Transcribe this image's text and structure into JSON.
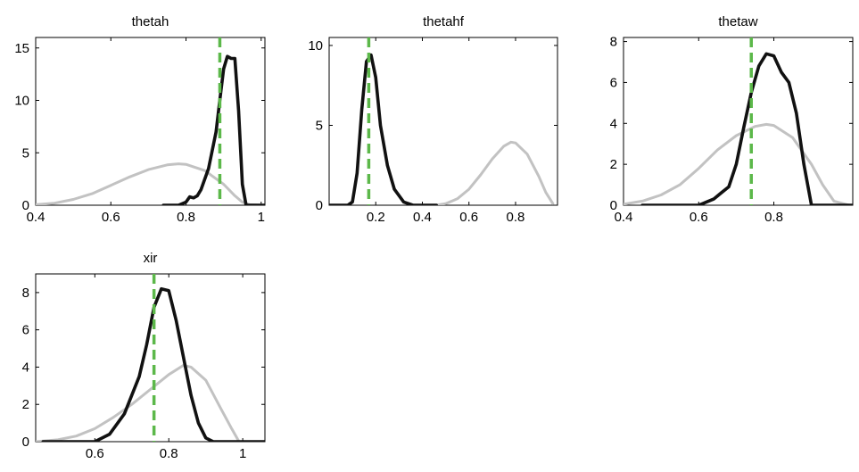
{
  "figure": {
    "background": "#ffffff",
    "prior_color": "#c2c2c2",
    "posterior_color": "#111111",
    "mode_color": "#5cb84a"
  },
  "chart_data": [
    {
      "type": "line",
      "title": "thetah",
      "xlim": [
        0.4,
        1.01
      ],
      "ylim": [
        0,
        16
      ],
      "xticks": [
        0.4,
        0.6,
        0.8,
        1
      ],
      "xtick_labels": [
        "0.4",
        "0.6",
        "0.8",
        "1"
      ],
      "yticks": [
        0,
        5,
        10,
        15
      ],
      "ytick_labels": [
        "0",
        "5",
        "10",
        "15"
      ],
      "mode_line": 0.89,
      "series": [
        {
          "role": "prior",
          "x": [
            0.4,
            0.45,
            0.5,
            0.55,
            0.6,
            0.65,
            0.7,
            0.75,
            0.78,
            0.8,
            0.85,
            0.9,
            0.93,
            0.95,
            0.97,
            1.0
          ],
          "y": [
            0.05,
            0.2,
            0.55,
            1.1,
            1.9,
            2.7,
            3.4,
            3.85,
            3.95,
            3.9,
            3.3,
            2.0,
            0.9,
            0.3,
            0.05,
            0
          ]
        },
        {
          "role": "posterior",
          "x": [
            0.74,
            0.78,
            0.8,
            0.81,
            0.82,
            0.83,
            0.84,
            0.86,
            0.88,
            0.89,
            0.9,
            0.91,
            0.92,
            0.93,
            0.94,
            0.95,
            0.96,
            1.01
          ],
          "y": [
            0,
            0,
            0.3,
            0.8,
            0.7,
            0.9,
            1.5,
            3.5,
            7.0,
            10.0,
            13.0,
            14.2,
            14.0,
            14.0,
            9.0,
            2.0,
            0,
            0
          ]
        }
      ]
    },
    {
      "type": "line",
      "title": "thetahf",
      "xlim": [
        0.0,
        0.98
      ],
      "ylim": [
        0,
        10.5
      ],
      "xticks": [
        0.2,
        0.4,
        0.6,
        0.8
      ],
      "xtick_labels": [
        "0.2",
        "0.4",
        "0.6",
        "0.8"
      ],
      "yticks": [
        0,
        5,
        10
      ],
      "ytick_labels": [
        "0",
        "5",
        "10"
      ],
      "mode_line": 0.17,
      "series": [
        {
          "role": "prior",
          "x": [
            0.46,
            0.5,
            0.55,
            0.6,
            0.65,
            0.7,
            0.75,
            0.78,
            0.8,
            0.85,
            0.9,
            0.93,
            0.96
          ],
          "y": [
            0,
            0.1,
            0.4,
            1.0,
            1.9,
            2.9,
            3.7,
            3.95,
            3.9,
            3.2,
            1.8,
            0.8,
            0.1
          ]
        },
        {
          "role": "posterior",
          "x": [
            0.0,
            0.08,
            0.1,
            0.12,
            0.14,
            0.16,
            0.18,
            0.2,
            0.22,
            0.25,
            0.28,
            0.32,
            0.36,
            0.46
          ],
          "y": [
            0,
            0,
            0.2,
            2.0,
            6.0,
            9.0,
            9.4,
            8.0,
            5.0,
            2.5,
            1.0,
            0.2,
            0,
            0
          ]
        }
      ]
    },
    {
      "type": "line",
      "title": "thetaw",
      "xlim": [
        0.4,
        1.01
      ],
      "ylim": [
        0,
        8.2
      ],
      "xticks": [
        0.4,
        0.6,
        0.8
      ],
      "xtick_labels": [
        "0.4",
        "0.6",
        "0.8"
      ],
      "yticks": [
        0,
        2,
        4,
        6,
        8
      ],
      "ytick_labels": [
        "0",
        "2",
        "4",
        "6",
        "8"
      ],
      "mode_line": 0.74,
      "series": [
        {
          "role": "prior",
          "x": [
            0.4,
            0.45,
            0.5,
            0.55,
            0.6,
            0.65,
            0.7,
            0.75,
            0.78,
            0.8,
            0.85,
            0.9,
            0.93,
            0.96,
            1.0
          ],
          "y": [
            0.05,
            0.2,
            0.5,
            1.0,
            1.8,
            2.7,
            3.4,
            3.85,
            3.95,
            3.9,
            3.3,
            2.0,
            1.0,
            0.2,
            0
          ]
        },
        {
          "role": "posterior",
          "x": [
            0.45,
            0.6,
            0.64,
            0.66,
            0.68,
            0.7,
            0.72,
            0.74,
            0.76,
            0.78,
            0.8,
            0.82,
            0.84,
            0.86,
            0.88,
            0.9,
            1.01
          ],
          "y": [
            0,
            0,
            0.3,
            0.6,
            0.9,
            2.0,
            3.8,
            5.5,
            6.8,
            7.4,
            7.3,
            6.5,
            6.0,
            4.5,
            2.0,
            0,
            0
          ]
        }
      ]
    },
    {
      "type": "line",
      "title": "xir",
      "xlim": [
        0.44,
        1.06
      ],
      "ylim": [
        0,
        9
      ],
      "xticks": [
        0.6,
        0.8,
        1
      ],
      "xtick_labels": [
        "0.6",
        "0.8",
        "1"
      ],
      "yticks": [
        0,
        2,
        4,
        6,
        8
      ],
      "ytick_labels": [
        "0",
        "2",
        "4",
        "6",
        "8"
      ],
      "mode_line": 0.76,
      "series": [
        {
          "role": "prior",
          "x": [
            0.44,
            0.5,
            0.55,
            0.6,
            0.65,
            0.7,
            0.75,
            0.8,
            0.84,
            0.86,
            0.9,
            0.94,
            0.97,
            0.99
          ],
          "y": [
            0,
            0.1,
            0.3,
            0.7,
            1.3,
            2.0,
            2.8,
            3.6,
            4.1,
            4.0,
            3.3,
            1.8,
            0.7,
            0
          ]
        },
        {
          "role": "posterior",
          "x": [
            0.46,
            0.6,
            0.64,
            0.68,
            0.72,
            0.74,
            0.76,
            0.78,
            0.8,
            0.82,
            0.84,
            0.86,
            0.88,
            0.9,
            0.92,
            1.06
          ],
          "y": [
            0,
            0,
            0.4,
            1.5,
            3.5,
            5.2,
            7.2,
            8.2,
            8.1,
            6.5,
            4.5,
            2.5,
            1.0,
            0.2,
            0,
            0
          ]
        }
      ]
    }
  ]
}
